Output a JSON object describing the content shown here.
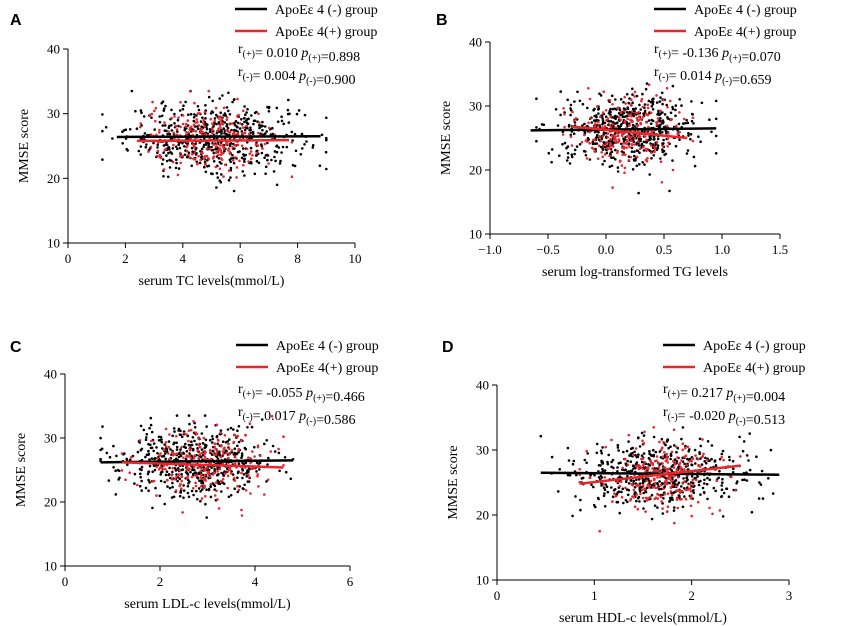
{
  "chart_data": [
    {
      "type": "scatter",
      "panel": "A",
      "xlabel": "serum TC levels(mmol/L)",
      "ylabel": "MMSE score",
      "xlim": [
        0,
        10
      ],
      "ylim": [
        10,
        40
      ],
      "xticks": [
        "0",
        "2",
        "4",
        "6",
        "8",
        "10"
      ],
      "yticks": [
        "10",
        "20",
        "30",
        "40"
      ],
      "legend": [
        "ApoEε 4 (-) group",
        "ApoEε 4(+) group"
      ],
      "series": [
        {
          "name": "ApoEε 4 (-) group",
          "color": "#000000",
          "x_range": [
            1.2,
            9.0
          ],
          "y_center": 26.3,
          "n": 560,
          "fit": {
            "x": [
              1.7,
              8.8
            ],
            "y": [
              26.4,
              26.5
            ]
          }
        },
        {
          "name": "ApoEε 4(+) group",
          "color": "#e8262b",
          "x_range": [
            2.0,
            7.8
          ],
          "y_center": 25.9,
          "n": 240,
          "fit": {
            "x": [
              2.4,
              7.7
            ],
            "y": [
              25.8,
              25.9
            ]
          }
        }
      ],
      "stats": {
        "pos": {
          "r": "0.010",
          "p": "0.898"
        },
        "neg": {
          "r": "0.004",
          "p": "0.900"
        }
      }
    },
    {
      "type": "scatter",
      "panel": "B",
      "xlabel": "serum log-transformed TG levels",
      "ylabel": "MMSE score",
      "xlim": [
        -1.0,
        1.5
      ],
      "ylim": [
        10,
        40
      ],
      "xticks": [
        "−1.0",
        "−0.5",
        "0.0",
        "0.5",
        "1.0",
        "1.5"
      ],
      "yticks": [
        "10",
        "20",
        "30",
        "40"
      ],
      "legend": [
        "ApoEε 4 (-) group",
        "ApoEε 4(+) group"
      ],
      "series": [
        {
          "name": "ApoEε 4 (-) group",
          "color": "#000000",
          "x_range": [
            -0.6,
            0.95
          ],
          "y_center": 26.3,
          "n": 560,
          "fit": {
            "x": [
              -0.65,
              0.95
            ],
            "y": [
              26.2,
              26.5
            ]
          }
        },
        {
          "name": "ApoEε 4(+) group",
          "color": "#e8262b",
          "x_range": [
            -0.4,
            0.75
          ],
          "y_center": 26.0,
          "n": 240,
          "fit": {
            "x": [
              -0.3,
              0.7
            ],
            "y": [
              26.8,
              25.0
            ]
          }
        }
      ],
      "stats": {
        "pos": {
          "r": "-0.136",
          "p": "0.070"
        },
        "neg": {
          "r": "0.014",
          "p": "0.659"
        }
      }
    },
    {
      "type": "scatter",
      "panel": "C",
      "xlabel": "serum LDL-c levels(mmol/L)",
      "ylabel": "MMSE score",
      "xlim": [
        0,
        6
      ],
      "ylim": [
        10,
        40
      ],
      "xticks": [
        "0",
        "2",
        "4",
        "6"
      ],
      "yticks": [
        "10",
        "20",
        "30",
        "40"
      ],
      "legend": [
        "ApoEε 4 (-) group",
        "ApoEε 4(+) group"
      ],
      "series": [
        {
          "name": "ApoEε 4 (-) group",
          "color": "#000000",
          "x_range": [
            0.75,
            4.8
          ],
          "y_center": 26.3,
          "n": 560,
          "fit": {
            "x": [
              0.75,
              4.8
            ],
            "y": [
              26.2,
              26.5
            ]
          }
        },
        {
          "name": "ApoEε 4(+) group",
          "color": "#e8262b",
          "x_range": [
            1.2,
            4.6
          ],
          "y_center": 26.0,
          "n": 240,
          "fit": {
            "x": [
              1.2,
              4.6
            ],
            "y": [
              26.2,
              25.4
            ]
          }
        }
      ],
      "stats": {
        "pos": {
          "r": "-0.055",
          "p": "0.466"
        },
        "neg": {
          "r": "0.017",
          "p": "0.586"
        }
      }
    },
    {
      "type": "scatter",
      "panel": "D",
      "xlabel": "serum HDL-c levels(mmol/L)",
      "ylabel": "MMSE score",
      "xlim": [
        0,
        3
      ],
      "ylim": [
        10,
        40
      ],
      "xticks": [
        "0",
        "1",
        "2",
        "3"
      ],
      "yticks": [
        "10",
        "20",
        "30",
        "40"
      ],
      "legend": [
        "ApoEε 4 (-) group",
        "ApoEε 4(+) group"
      ],
      "series": [
        {
          "name": "ApoEε 4 (-) group",
          "color": "#000000",
          "x_range": [
            0.45,
            2.85
          ],
          "y_center": 26.3,
          "n": 560,
          "fit": {
            "x": [
              0.45,
              2.9
            ],
            "y": [
              26.5,
              26.2
            ]
          }
        },
        {
          "name": "ApoEε 4(+) group",
          "color": "#e8262b",
          "x_range": [
            0.85,
            2.5
          ],
          "y_center": 26.0,
          "n": 240,
          "fit": {
            "x": [
              0.85,
              2.5
            ],
            "y": [
              24.8,
              27.6
            ]
          }
        }
      ],
      "stats": {
        "pos": {
          "r": "0.217",
          "p": "0.004"
        },
        "neg": {
          "r": "-0.020",
          "p": "0.513"
        }
      }
    }
  ]
}
